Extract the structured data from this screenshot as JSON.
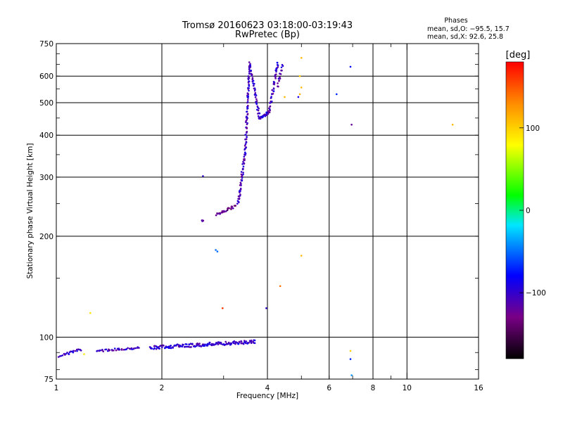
{
  "chart_data": {
    "type": "scatter",
    "title": "Tromsø 20160623 03:18:00-03:19:43",
    "subtitle": "RwPretec (Bp)",
    "xlabel": "Frequency [MHz]",
    "ylabel": "Stationary phase Virtual Height [km]",
    "x_scale": "log",
    "y_scale": "log",
    "xlim": [
      1,
      16
    ],
    "ylim": [
      75,
      750
    ],
    "x_ticks": [
      {
        "value": 1,
        "label": "1"
      },
      {
        "value": 2,
        "label": "2"
      },
      {
        "value": 4,
        "label": "4"
      },
      {
        "value": 6,
        "label": "6"
      },
      {
        "value": 8,
        "label": "8"
      },
      {
        "value": 10,
        "label": "10"
      },
      {
        "value": 16,
        "label": "16"
      }
    ],
    "y_ticks": [
      {
        "value": 75,
        "label": "75"
      },
      {
        "value": 100,
        "label": "100"
      },
      {
        "value": 200,
        "label": "200"
      },
      {
        "value": 300,
        "label": "300"
      },
      {
        "value": 400,
        "label": "400"
      },
      {
        "value": 500,
        "label": "500"
      },
      {
        "value": 600,
        "label": "600"
      },
      {
        "value": 750,
        "label": "750"
      }
    ],
    "x_grid": [
      2,
      4,
      6,
      8,
      10
    ],
    "y_grid": [
      100,
      200,
      300,
      400,
      500,
      600
    ],
    "stats": {
      "heading": "Phases",
      "o_line": "mean, sd,O: −95.5, 15.7",
      "x_line": "mean, sd,X:  92.6, 25.8"
    },
    "colorbar": {
      "label": "[deg]",
      "range": [
        -180,
        180
      ],
      "ticks": [
        {
          "value": 100,
          "label": "100"
        },
        {
          "value": 0,
          "label": "0"
        },
        {
          "value": -100,
          "label": "−100"
        }
      ],
      "colors": [
        "#000000",
        "#7a0086",
        "#0000ff",
        "#00e6ff",
        "#00ff00",
        "#ffff00",
        "#ff8c00",
        "#ff0000"
      ]
    },
    "series": [
      {
        "traces": [
          {
            "f0": 1.02,
            "f1": 1.18,
            "h0": 88,
            "h1": 92,
            "n": 22,
            "sh": 4,
            "ph": -105
          },
          {
            "f0": 1.3,
            "f1": 1.72,
            "h0": 91,
            "h1": 93,
            "n": 40,
            "sh": 3,
            "ph": -105
          },
          {
            "f0": 1.85,
            "f1": 3.7,
            "h0": 93,
            "h1": 97,
            "n": 170,
            "sh": 5,
            "ph": -100
          },
          {
            "f0": 2.6,
            "f1": 2.62,
            "h0": 222,
            "h1": 222,
            "n": 6,
            "sh": 2,
            "ph": -110
          },
          {
            "f0": 2.85,
            "f1": 3.25,
            "h0": 232,
            "h1": 246,
            "n": 28,
            "sh": 4,
            "ph": -130
          },
          {
            "f0": 3.3,
            "f1": 3.46,
            "h0": 248,
            "h1": 360,
            "n": 50,
            "sh": 6,
            "ph": -105
          },
          {
            "f0": 3.46,
            "f1": 3.56,
            "h0": 360,
            "h1": 660,
            "n": 80,
            "sh": 8,
            "ph": -105
          },
          {
            "f0": 3.56,
            "f1": 3.8,
            "h0": 650,
            "h1": 448,
            "n": 50,
            "sh": 6,
            "ph": -105
          },
          {
            "f0": 3.8,
            "f1": 4.05,
            "h0": 448,
            "h1": 470,
            "n": 25,
            "sh": 4,
            "ph": -105
          },
          {
            "f0": 4.05,
            "f1": 4.28,
            "h0": 470,
            "h1": 660,
            "n": 45,
            "sh": 6,
            "ph": -105
          },
          {
            "f0": 4.28,
            "f1": 4.42,
            "h0": 560,
            "h1": 650,
            "n": 16,
            "sh": 5,
            "ph": -110
          }
        ],
        "points": [
          {
            "f": 1.2,
            "h": 89,
            "ph": 90
          },
          {
            "f": 1.25,
            "h": 118,
            "ph": 90
          },
          {
            "f": 2.62,
            "h": 302,
            "ph": -100
          },
          {
            "f": 2.85,
            "h": 182,
            "ph": -50
          },
          {
            "f": 2.88,
            "h": 180,
            "ph": -50
          },
          {
            "f": 2.98,
            "h": 122,
            "ph": 160
          },
          {
            "f": 3.97,
            "h": 122,
            "ph": -100
          },
          {
            "f": 4.35,
            "h": 142,
            "ph": 140
          },
          {
            "f": 4.48,
            "h": 520,
            "ph": 110
          },
          {
            "f": 4.9,
            "h": 520,
            "ph": -90
          },
          {
            "f": 4.95,
            "h": 530,
            "ph": 110
          },
          {
            "f": 5.0,
            "h": 555,
            "ph": 110
          },
          {
            "f": 4.95,
            "h": 600,
            "ph": 100
          },
          {
            "f": 5.0,
            "h": 680,
            "ph": 110
          },
          {
            "f": 5.0,
            "h": 175,
            "ph": 110
          },
          {
            "f": 6.3,
            "h": 530,
            "ph": -70
          },
          {
            "f": 6.9,
            "h": 640,
            "ph": -80
          },
          {
            "f": 6.95,
            "h": 430,
            "ph": -120
          },
          {
            "f": 6.9,
            "h": 91,
            "ph": 100
          },
          {
            "f": 6.9,
            "h": 86,
            "ph": -70
          },
          {
            "f": 6.95,
            "h": 77,
            "ph": -40
          },
          {
            "f": 13.5,
            "h": 430,
            "ph": 110
          }
        ]
      }
    ]
  }
}
